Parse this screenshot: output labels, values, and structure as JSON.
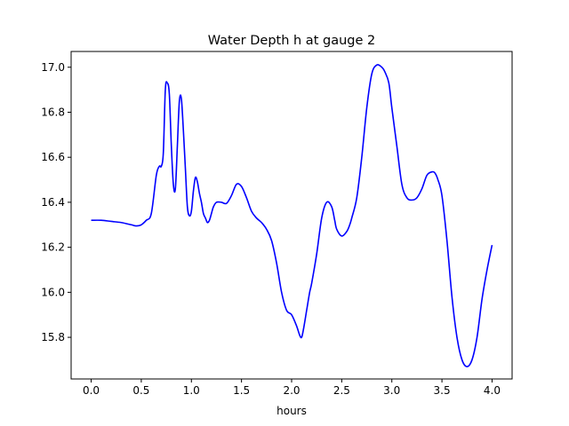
{
  "chart_data": {
    "type": "line",
    "title": "Water Depth h at gauge 2",
    "xlabel": "hours",
    "ylabel": "",
    "xlim": [
      -0.2,
      4.2
    ],
    "ylim": [
      15.615,
      17.07
    ],
    "xticks": [
      0.0,
      0.5,
      1.0,
      1.5,
      2.0,
      2.5,
      3.0,
      3.5,
      4.0
    ],
    "xtick_labels": [
      "0.0",
      "0.5",
      "1.0",
      "1.5",
      "2.0",
      "2.5",
      "3.0",
      "3.5",
      "4.0"
    ],
    "yticks": [
      15.8,
      16.0,
      16.2,
      16.4,
      16.6,
      16.8,
      17.0
    ],
    "ytick_labels": [
      "15.8",
      "16.0",
      "16.2",
      "16.4",
      "16.6",
      "16.8",
      "17.0"
    ],
    "grid": false,
    "series": [
      {
        "color": "#0000ff",
        "x": [
          0.0,
          0.1,
          0.2,
          0.3,
          0.4,
          0.45,
          0.5,
          0.55,
          0.6,
          0.65,
          0.68,
          0.7,
          0.72,
          0.74,
          0.76,
          0.78,
          0.8,
          0.82,
          0.84,
          0.86,
          0.88,
          0.9,
          0.92,
          0.94,
          0.96,
          0.98,
          1.0,
          1.02,
          1.04,
          1.06,
          1.08,
          1.1,
          1.12,
          1.14,
          1.16,
          1.18,
          1.2,
          1.22,
          1.25,
          1.3,
          1.35,
          1.4,
          1.45,
          1.5,
          1.55,
          1.6,
          1.65,
          1.7,
          1.75,
          1.8,
          1.85,
          1.9,
          1.95,
          2.0,
          2.05,
          2.08,
          2.1,
          2.12,
          2.15,
          2.18,
          2.2,
          2.25,
          2.3,
          2.35,
          2.4,
          2.43,
          2.45,
          2.5,
          2.55,
          2.58,
          2.6,
          2.65,
          2.7,
          2.75,
          2.8,
          2.85,
          2.9,
          2.93,
          2.97,
          3.0,
          3.05,
          3.1,
          3.15,
          3.2,
          3.25,
          3.3,
          3.35,
          3.4,
          3.43,
          3.46,
          3.5,
          3.55,
          3.6,
          3.65,
          3.7,
          3.75,
          3.8,
          3.85,
          3.9,
          3.95,
          4.0
        ],
        "y": [
          16.32,
          16.32,
          16.315,
          16.31,
          16.3,
          16.295,
          16.3,
          16.32,
          16.35,
          16.52,
          16.56,
          16.56,
          16.62,
          16.9,
          16.93,
          16.88,
          16.65,
          16.48,
          16.46,
          16.65,
          16.85,
          16.86,
          16.72,
          16.55,
          16.38,
          16.34,
          16.36,
          16.45,
          16.51,
          16.49,
          16.44,
          16.4,
          16.35,
          16.33,
          16.31,
          16.32,
          16.35,
          16.38,
          16.4,
          16.4,
          16.395,
          16.43,
          16.48,
          16.47,
          16.42,
          16.36,
          16.33,
          16.31,
          16.28,
          16.23,
          16.13,
          16.0,
          15.92,
          15.9,
          15.85,
          15.81,
          15.8,
          15.84,
          15.92,
          16.0,
          16.04,
          16.17,
          16.33,
          16.4,
          16.38,
          16.32,
          16.28,
          16.25,
          16.27,
          16.3,
          16.33,
          16.42,
          16.6,
          16.82,
          16.97,
          17.01,
          17.0,
          16.98,
          16.93,
          16.82,
          16.65,
          16.48,
          16.42,
          16.41,
          16.42,
          16.46,
          16.52,
          16.535,
          16.53,
          16.5,
          16.43,
          16.23,
          15.98,
          15.8,
          15.7,
          15.67,
          15.7,
          15.8,
          15.97,
          16.1,
          16.21
        ]
      }
    ]
  }
}
